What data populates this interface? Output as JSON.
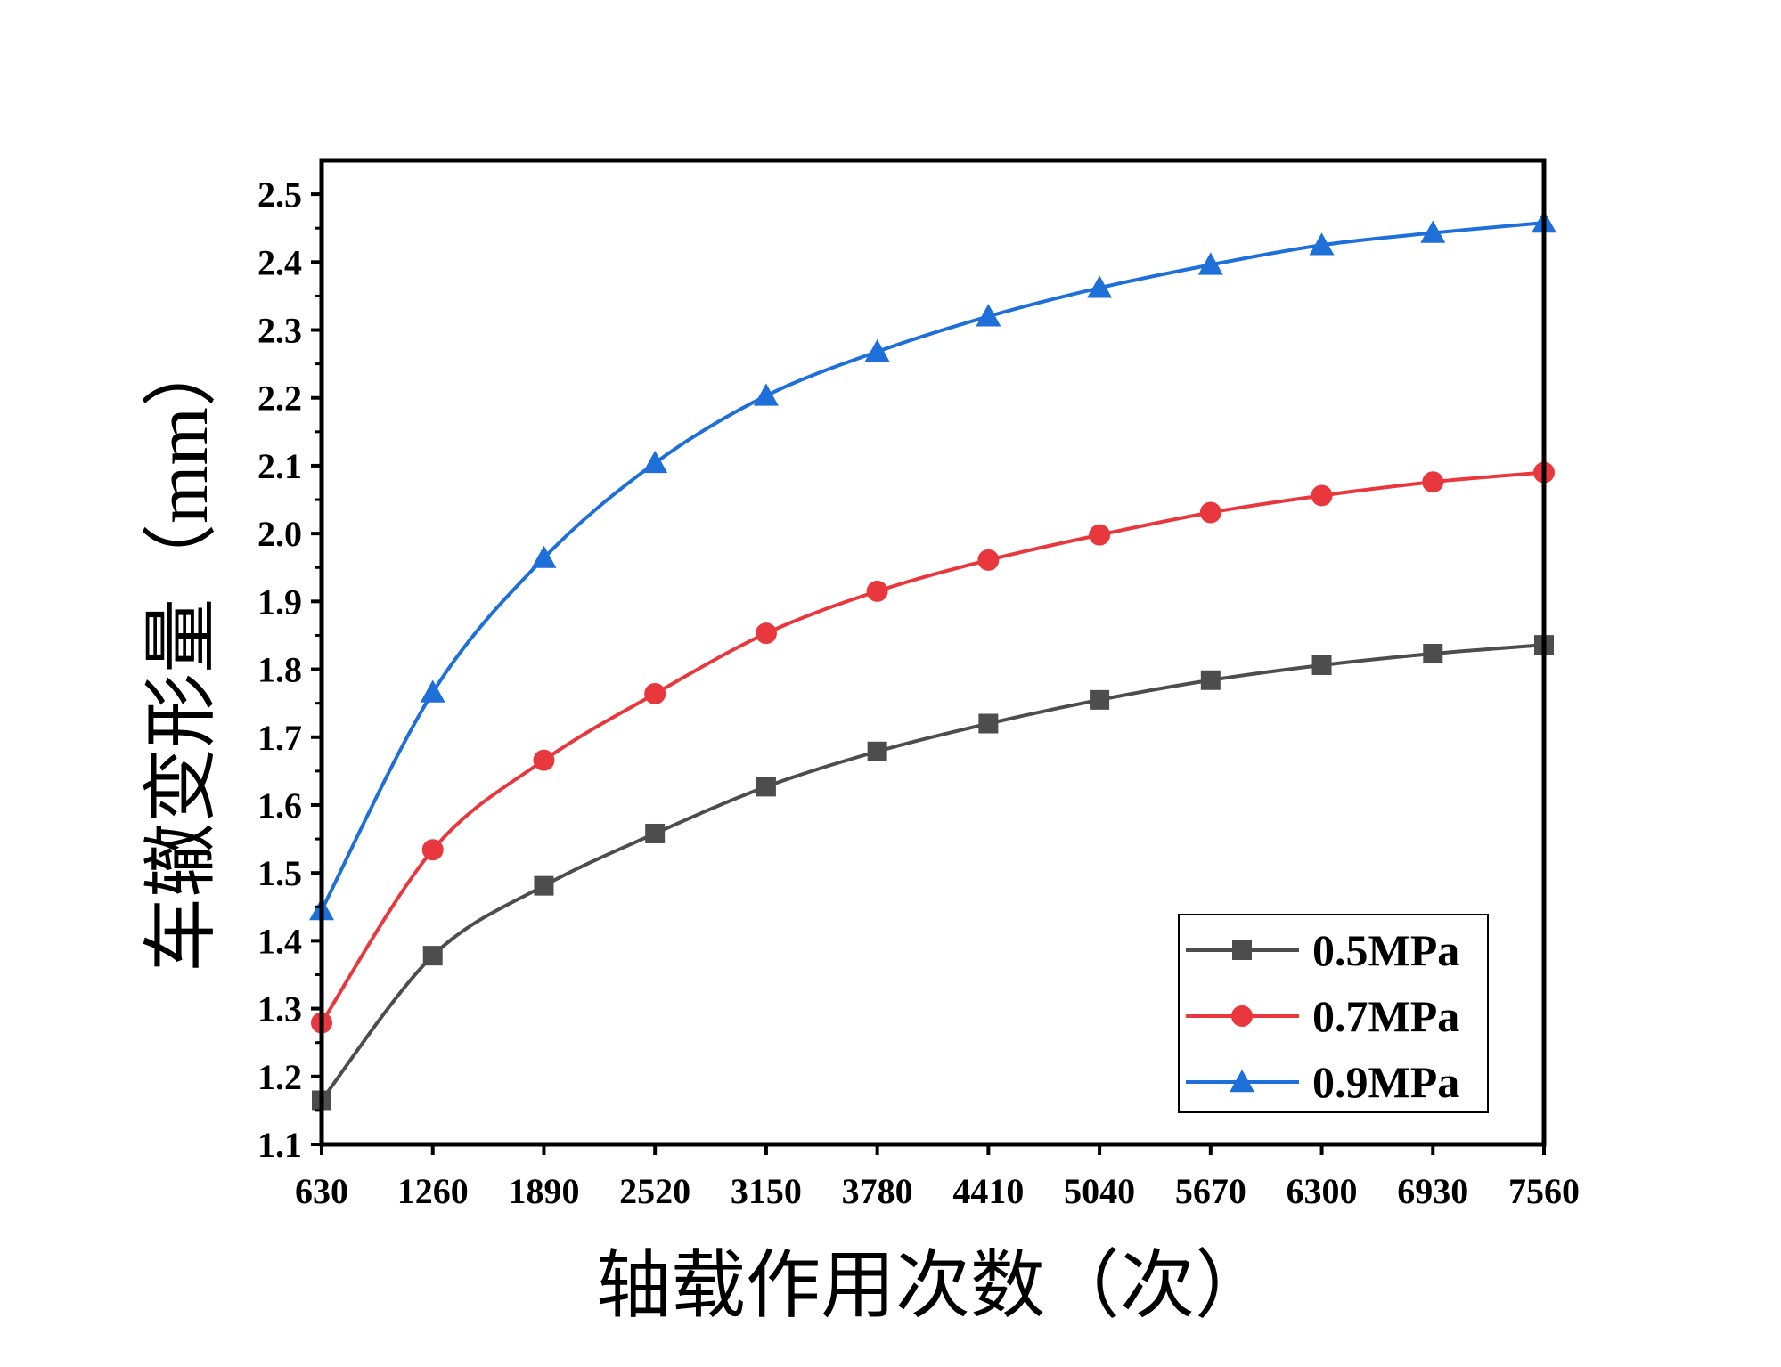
{
  "chart_data": {
    "type": "line",
    "title": "",
    "xlabel": "轴载作用次数（次）",
    "ylabel": "车辙变形量（mm）",
    "x": [
      630,
      1260,
      1890,
      2520,
      3150,
      3780,
      4410,
      5040,
      5670,
      6300,
      6930,
      7560
    ],
    "xlim": [
      630,
      7560
    ],
    "ylim": [
      1.1,
      2.55
    ],
    "y_ticks": [
      1.1,
      1.2,
      1.3,
      1.4,
      1.5,
      1.6,
      1.7,
      1.8,
      1.9,
      2.0,
      2.1,
      2.2,
      2.3,
      2.4,
      2.5
    ],
    "grid": false,
    "legend_position": "bottom-right",
    "series": [
      {
        "name": "0.5MPa",
        "color": "#4d4d4d",
        "marker": "square",
        "values": [
          1.165,
          1.378,
          1.481,
          1.558,
          1.627,
          1.679,
          1.72,
          1.755,
          1.784,
          1.806,
          1.823,
          1.836
        ]
      },
      {
        "name": "0.7MPa",
        "color": "#e8383d",
        "marker": "circle",
        "values": [
          1.279,
          1.534,
          1.666,
          1.764,
          1.853,
          1.915,
          1.961,
          1.998,
          2.031,
          2.056,
          2.076,
          2.09
        ]
      },
      {
        "name": "0.9MPa",
        "color": "#1f6fd9",
        "marker": "triangle",
        "values": [
          1.445,
          1.766,
          1.964,
          2.104,
          2.203,
          2.268,
          2.32,
          2.362,
          2.396,
          2.425,
          2.443,
          2.458
        ]
      }
    ]
  }
}
